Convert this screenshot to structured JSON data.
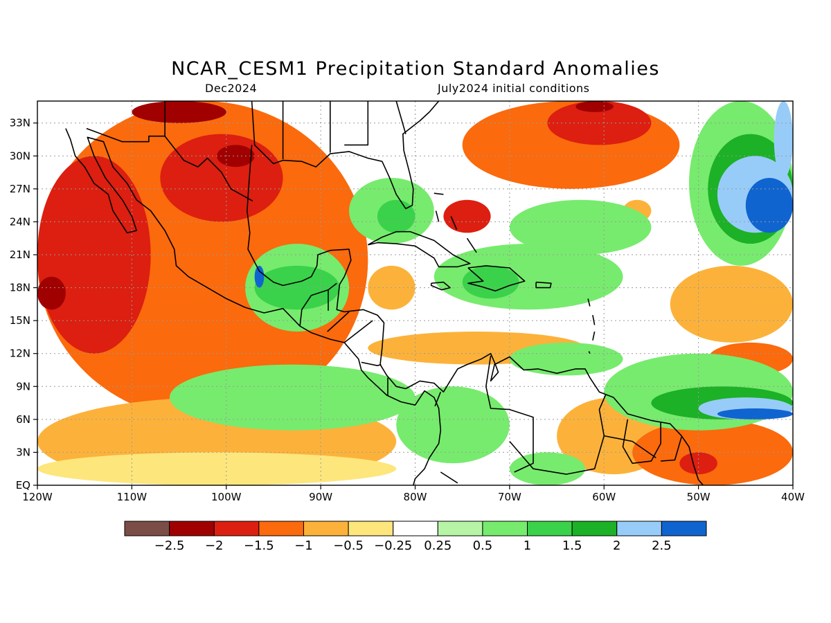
{
  "title": "NCAR_CESM1 Precipitation Standard Anomalies",
  "subtitle_left": "Dec2024",
  "subtitle_right": "July2024 initial conditions",
  "map": {
    "lon_range": [
      -120,
      -40
    ],
    "lat_range": [
      0,
      35
    ],
    "lon_ticks": [
      {
        "value": -120,
        "label": "120W"
      },
      {
        "value": -110,
        "label": "110W"
      },
      {
        "value": -100,
        "label": "100W"
      },
      {
        "value": -90,
        "label": "90W"
      },
      {
        "value": -80,
        "label": "80W"
      },
      {
        "value": -70,
        "label": "70W"
      },
      {
        "value": -60,
        "label": "60W"
      },
      {
        "value": -50,
        "label": "50W"
      },
      {
        "value": -40,
        "label": "40W"
      }
    ],
    "lat_ticks": [
      {
        "value": 0,
        "label": "EQ"
      },
      {
        "value": 3,
        "label": "3N"
      },
      {
        "value": 6,
        "label": "6N"
      },
      {
        "value": 9,
        "label": "9N"
      },
      {
        "value": 12,
        "label": "12N"
      },
      {
        "value": 15,
        "label": "15N"
      },
      {
        "value": 18,
        "label": "18N"
      },
      {
        "value": 21,
        "label": "21N"
      },
      {
        "value": 24,
        "label": "24N"
      },
      {
        "value": 27,
        "label": "27N"
      },
      {
        "value": 30,
        "label": "30N"
      },
      {
        "value": 33,
        "label": "33N"
      }
    ],
    "grid": true,
    "background_color": "#ffffff",
    "anomaly_regions": [
      {
        "level": -1.0,
        "lon": -120,
        "lat": 35,
        "lon2": -85,
        "lat2": 6
      },
      {
        "level": -1.5,
        "lon": -120,
        "lat": 30,
        "lon2": -108,
        "lat2": 12
      },
      {
        "level": -2.0,
        "lon": -120,
        "lat": 19,
        "lon2": -117,
        "lat2": 16
      },
      {
        "level": -1.5,
        "lon": -107,
        "lat": 32,
        "lon2": -94,
        "lat2": 24
      },
      {
        "level": -2.0,
        "lon": -101,
        "lat": 31,
        "lon2": -97,
        "lat2": 29
      },
      {
        "level": -2.0,
        "lon": -110,
        "lat": 35,
        "lon2": -100,
        "lat2": 33
      },
      {
        "level": -1.0,
        "lon": -75,
        "lat": 35,
        "lon2": -52,
        "lat2": 27
      },
      {
        "level": -1.5,
        "lon": -66,
        "lat": 35,
        "lon2": -55,
        "lat2": 31
      },
      {
        "level": -2.0,
        "lon": -63,
        "lat": 35,
        "lon2": -59,
        "lat2": 34
      },
      {
        "level": -1.5,
        "lon": -77,
        "lat": 26,
        "lon2": -72,
        "lat2": 23
      },
      {
        "level": -0.5,
        "lon": -120,
        "lat": 8,
        "lon2": -82,
        "lat2": 0
      },
      {
        "level": -0.25,
        "lon": -120,
        "lat": 3,
        "lon2": -82,
        "lat2": 0
      },
      {
        "level": -0.5,
        "lon": -85,
        "lat": 20,
        "lon2": -80,
        "lat2": 16
      },
      {
        "level": -0.5,
        "lon": -85,
        "lat": 14,
        "lon2": -62,
        "lat2": 11
      },
      {
        "level": -0.5,
        "lon": -65,
        "lat": 8,
        "lon2": -53,
        "lat2": 1
      },
      {
        "level": -1.0,
        "lon": -57,
        "lat": 6,
        "lon2": -40,
        "lat2": 0
      },
      {
        "level": -1.5,
        "lon": -52,
        "lat": 3,
        "lon2": -48,
        "lat2": 1
      },
      {
        "level": -1.0,
        "lon": -49,
        "lat": 13,
        "lon2": -40,
        "lat2": 10
      },
      {
        "level": -0.5,
        "lon": -53,
        "lat": 20,
        "lon2": -40,
        "lat2": 13
      },
      {
        "level": -0.5,
        "lon": -58,
        "lat": 26,
        "lon2": -55,
        "lat2": 24
      },
      {
        "level": 0.5,
        "lon": -98,
        "lat": 22,
        "lon2": -87,
        "lat2": 14
      },
      {
        "level": 1.0,
        "lon": -97,
        "lat": 20,
        "lon2": -88,
        "lat2": 16
      },
      {
        "level": 2.5,
        "lon": -97,
        "lat": 20,
        "lon2": -96,
        "lat2": 18
      },
      {
        "level": 0.5,
        "lon": -87,
        "lat": 28,
        "lon2": -78,
        "lat2": 22
      },
      {
        "level": 1.0,
        "lon": -84,
        "lat": 26,
        "lon2": -80,
        "lat2": 23
      },
      {
        "level": 0.5,
        "lon": -78,
        "lat": 22,
        "lon2": -58,
        "lat2": 16
      },
      {
        "level": 1.0,
        "lon": -75,
        "lat": 20,
        "lon2": -69,
        "lat2": 17
      },
      {
        "level": 0.5,
        "lon": -70,
        "lat": 26,
        "lon2": -55,
        "lat2": 21
      },
      {
        "level": 0.5,
        "lon": -106,
        "lat": 11,
        "lon2": -80,
        "lat2": 5
      },
      {
        "level": 0.5,
        "lon": -82,
        "lat": 9,
        "lon2": -70,
        "lat2": 2
      },
      {
        "level": 0.5,
        "lon": -70,
        "lat": 3,
        "lon2": -62,
        "lat2": 0
      },
      {
        "level": 0.5,
        "lon": -70,
        "lat": 13,
        "lon2": -58,
        "lat2": 10
      },
      {
        "level": 0.5,
        "lon": -60,
        "lat": 12,
        "lon2": -40,
        "lat2": 5
      },
      {
        "level": 1.5,
        "lon": -55,
        "lat": 9,
        "lon2": -40,
        "lat2": 6
      },
      {
        "level": 2.0,
        "lon": -50,
        "lat": 8,
        "lon2": -40,
        "lat2": 6
      },
      {
        "level": 2.5,
        "lon": -48,
        "lat": 7,
        "lon2": -40,
        "lat2": 6
      },
      {
        "level": 0.5,
        "lon": -51,
        "lat": 35,
        "lon2": -40,
        "lat2": 20
      },
      {
        "level": 1.5,
        "lon": -49,
        "lat": 32,
        "lon2": -40,
        "lat2": 22
      },
      {
        "level": 2.0,
        "lon": -48,
        "lat": 30,
        "lon2": -40,
        "lat2": 23
      },
      {
        "level": 2.5,
        "lon": -45,
        "lat": 28,
        "lon2": -40,
        "lat2": 23
      },
      {
        "level": 2.0,
        "lon": -42,
        "lat": 35,
        "lon2": -40,
        "lat2": 28
      }
    ]
  },
  "colorbar": {
    "colors": [
      "#7a4d46",
      "#a00000",
      "#dc1f10",
      "#fb6a0c",
      "#fcb23a",
      "#fde67c",
      "#ffffff",
      "#b5f5a5",
      "#77eb6e",
      "#3ad24a",
      "#1cb126",
      "#98ccf8",
      "#1064d0"
    ],
    "labels": [
      "−2.5",
      "−2",
      "−1.5",
      "−1",
      "−0.5",
      "−0.25",
      "0.25",
      "0.5",
      "1",
      "1.5",
      "2",
      "2.5"
    ],
    "levels": [
      -2.5,
      -2,
      -1.5,
      -1,
      -0.5,
      -0.25,
      0.25,
      0.5,
      1,
      1.5,
      2,
      2.5
    ]
  }
}
